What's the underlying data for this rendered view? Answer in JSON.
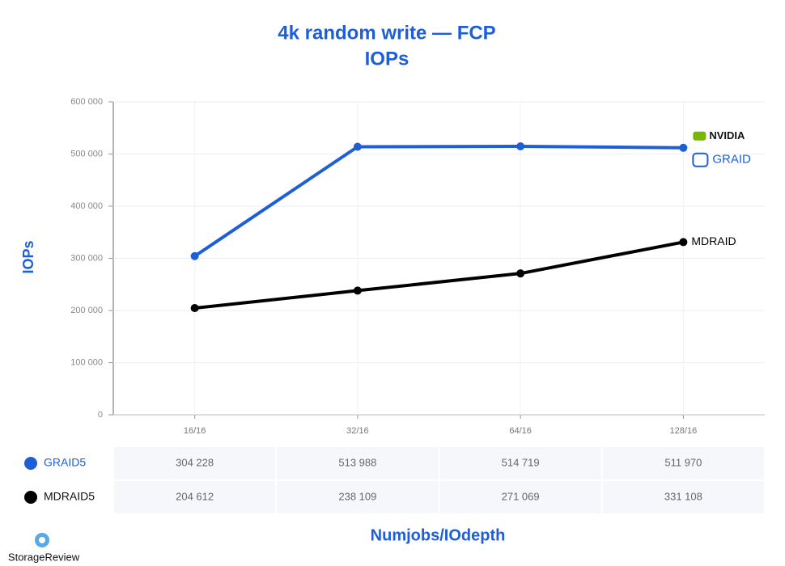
{
  "chart_data": {
    "type": "line",
    "title": "4k random write — FCP",
    "subtitle": "IOPs",
    "x_label": "Numjobs/IOdepth",
    "y_label": "IOPs",
    "categories": [
      "16/16",
      "32/16",
      "64/16",
      "128/16"
    ],
    "series": [
      {
        "name": "GRAID5",
        "color": "#1f5fd6",
        "values": [
          304228,
          513988,
          514719,
          511970
        ],
        "value_labels": [
          "304 228",
          "513 988",
          "514 719",
          "511 970"
        ],
        "end_label": "GRAID",
        "end_label_extra": "NVIDIA"
      },
      {
        "name": "MDRAID5",
        "color": "#000000",
        "values": [
          204612,
          238109,
          271069,
          331108
        ],
        "value_labels": [
          "204 612",
          "238 109",
          "271 069",
          "331 108"
        ],
        "end_label": "MDRAID"
      }
    ],
    "ylim": [
      0,
      600000
    ],
    "yticks": [
      0,
      {
        "value": 100000,
        "label": "100 000"
      },
      {
        "value": 200000,
        "label": "200 000"
      },
      {
        "value": 300000,
        "label": "300 000"
      },
      {
        "value": 400000,
        "label": "400 000"
      },
      {
        "value": 500000,
        "label": "500 000"
      },
      {
        "value": 600000,
        "label": "600 000"
      }
    ],
    "grid": true,
    "source": "StorageReview"
  }
}
